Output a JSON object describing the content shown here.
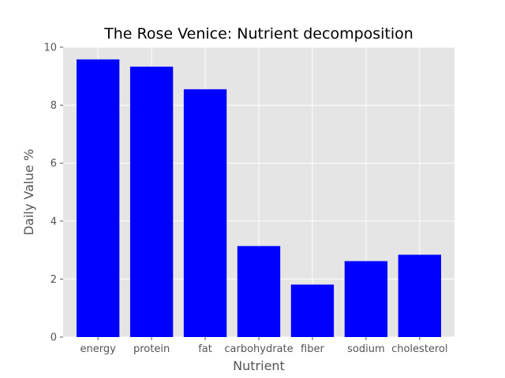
{
  "chart_data": {
    "type": "bar",
    "title": "The Rose Venice: Nutrient decomposition",
    "xlabel": "Nutrient",
    "ylabel": "Daily Value %",
    "categories": [
      "energy",
      "protein",
      "fat",
      "carbohydrate",
      "fiber",
      "sodium",
      "cholesterol"
    ],
    "values": [
      9.58,
      9.33,
      8.55,
      3.14,
      1.81,
      2.62,
      2.84
    ],
    "ylim": [
      0,
      10
    ],
    "yticks": [
      0,
      2,
      4,
      6,
      8,
      10
    ],
    "grid": true,
    "bar_color": "#0000ff",
    "plot_background": "#e5e5e5",
    "grid_color": "#ffffff"
  }
}
